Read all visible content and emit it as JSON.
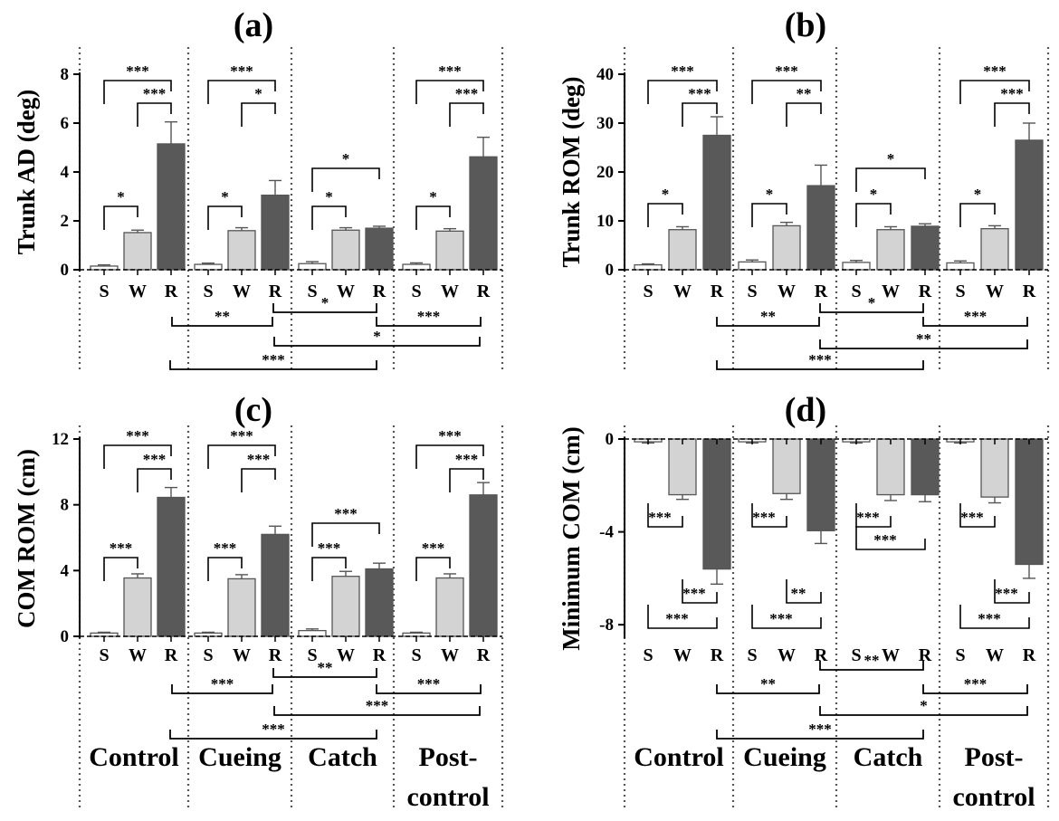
{
  "chart_data": [
    {
      "type": "bar",
      "panel": "(a)",
      "title": "(a)",
      "ylabel": "Trunk AD (deg)",
      "ylim": [
        0,
        8
      ],
      "yticks": [
        "0",
        "2",
        "4",
        "6",
        "8"
      ],
      "groups": [
        "Control",
        "Cueing",
        "Catch",
        "Post-control"
      ],
      "conditions": [
        "S",
        "W",
        "R"
      ],
      "series": [
        {
          "name": "S",
          "color": "#ffffff",
          "values": [
            0.15,
            0.22,
            0.25,
            0.22
          ],
          "errors": [
            0.05,
            0.05,
            0.08,
            0.06
          ]
        },
        {
          "name": "W",
          "color": "#d3d3d3",
          "values": [
            1.52,
            1.6,
            1.62,
            1.58
          ],
          "errors": [
            0.1,
            0.12,
            0.1,
            0.1
          ]
        },
        {
          "name": "R",
          "color": "#595959",
          "values": [
            5.15,
            3.05,
            1.7,
            4.62
          ],
          "errors": [
            0.9,
            0.6,
            0.08,
            0.8
          ]
        }
      ],
      "within_sig": [
        {
          "pairs": [
            [
              "S",
              "W",
              "*"
            ],
            [
              "W",
              "R",
              "***"
            ],
            [
              "S",
              "R",
              "***"
            ]
          ]
        },
        {
          "pairs": [
            [
              "S",
              "W",
              "*"
            ],
            [
              "W",
              "R",
              "*"
            ],
            [
              "S",
              "R",
              "***"
            ]
          ]
        },
        {
          "pairs": [
            [
              "S",
              "W",
              "*"
            ],
            [
              "W",
              "R",
              ""
            ],
            [
              "S",
              "R",
              "*"
            ]
          ]
        },
        {
          "pairs": [
            [
              "S",
              "W",
              "*"
            ],
            [
              "W",
              "R",
              "***"
            ],
            [
              "S",
              "R",
              "***"
            ]
          ]
        }
      ],
      "between_sig": [
        {
          "from": "Control",
          "to": "Cueing",
          "label": "**"
        },
        {
          "from": "Cueing",
          "to": "Catch",
          "label": "*"
        },
        {
          "from": "Catch",
          "to": "Post-control",
          "label": "***"
        },
        {
          "from": "Cueing",
          "to": "Post-control",
          "label": "*"
        },
        {
          "from": "Control",
          "to": "Catch",
          "label": "***"
        }
      ]
    },
    {
      "type": "bar",
      "panel": "(b)",
      "title": "(b)",
      "ylabel": "Trunk ROM (deg)",
      "ylim": [
        0,
        40
      ],
      "yticks": [
        "0",
        "10",
        "20",
        "30",
        "40"
      ],
      "groups": [
        "Control",
        "Cueing",
        "Catch",
        "Post-control"
      ],
      "conditions": [
        "S",
        "W",
        "R"
      ],
      "series": [
        {
          "name": "S",
          "color": "#ffffff",
          "values": [
            1.0,
            1.6,
            1.5,
            1.4
          ],
          "errors": [
            0.2,
            0.4,
            0.4,
            0.4
          ]
        },
        {
          "name": "W",
          "color": "#d3d3d3",
          "values": [
            8.2,
            9.0,
            8.2,
            8.4
          ],
          "errors": [
            0.6,
            0.7,
            0.6,
            0.6
          ]
        },
        {
          "name": "R",
          "color": "#595959",
          "values": [
            27.5,
            17.2,
            8.9,
            26.5
          ],
          "errors": [
            3.8,
            4.2,
            0.5,
            3.5
          ]
        }
      ],
      "within_sig": [
        {
          "pairs": [
            [
              "S",
              "W",
              "*"
            ],
            [
              "W",
              "R",
              "***"
            ],
            [
              "S",
              "R",
              "***"
            ]
          ]
        },
        {
          "pairs": [
            [
              "S",
              "W",
              "*"
            ],
            [
              "W",
              "R",
              "**"
            ],
            [
              "S",
              "R",
              "***"
            ]
          ]
        },
        {
          "pairs": [
            [
              "S",
              "W",
              "*"
            ],
            [
              "W",
              "R",
              ""
            ],
            [
              "S",
              "R",
              "*"
            ]
          ]
        },
        {
          "pairs": [
            [
              "S",
              "W",
              "*"
            ],
            [
              "W",
              "R",
              "***"
            ],
            [
              "S",
              "R",
              "***"
            ]
          ]
        }
      ],
      "between_sig": [
        {
          "from": "Control",
          "to": "Cueing",
          "label": "**"
        },
        {
          "from": "Cueing",
          "to": "Catch",
          "label": "*"
        },
        {
          "from": "Catch",
          "to": "Post-control",
          "label": "***"
        },
        {
          "from": "Cueing",
          "to": "Post-control",
          "label": "**"
        },
        {
          "from": "Control",
          "to": "Catch",
          "label": "***"
        }
      ]
    },
    {
      "type": "bar",
      "panel": "(c)",
      "title": "(c)",
      "ylabel": "COM ROM (cm)",
      "ylim": [
        0,
        12
      ],
      "yticks": [
        "0",
        "4",
        "8",
        "12"
      ],
      "groups": [
        "Control",
        "Cueing",
        "Catch",
        "Post-control"
      ],
      "group_labels": [
        "Control",
        "Cueing",
        "Catch",
        "Post-",
        "control"
      ],
      "conditions": [
        "S",
        "W",
        "R"
      ],
      "series": [
        {
          "name": "S",
          "color": "#ffffff",
          "values": [
            0.2,
            0.2,
            0.35,
            0.2
          ],
          "errors": [
            0.05,
            0.05,
            0.1,
            0.05
          ]
        },
        {
          "name": "W",
          "color": "#d3d3d3",
          "values": [
            3.55,
            3.5,
            3.65,
            3.55
          ],
          "errors": [
            0.25,
            0.25,
            0.3,
            0.25
          ]
        },
        {
          "name": "R",
          "color": "#595959",
          "values": [
            8.45,
            6.2,
            4.1,
            8.6
          ],
          "errors": [
            0.6,
            0.5,
            0.35,
            0.75
          ]
        }
      ],
      "within_sig": [
        {
          "pairs": [
            [
              "S",
              "W",
              "***"
            ],
            [
              "W",
              "R",
              "***"
            ],
            [
              "S",
              "R",
              "***"
            ]
          ]
        },
        {
          "pairs": [
            [
              "S",
              "W",
              "***"
            ],
            [
              "W",
              "R",
              "***"
            ],
            [
              "S",
              "R",
              "***"
            ]
          ]
        },
        {
          "pairs": [
            [
              "S",
              "W",
              "***"
            ],
            [
              "W",
              "R",
              ""
            ],
            [
              "S",
              "R",
              "***"
            ]
          ]
        },
        {
          "pairs": [
            [
              "S",
              "W",
              "***"
            ],
            [
              "W",
              "R",
              "***"
            ],
            [
              "S",
              "R",
              "***"
            ]
          ]
        }
      ],
      "between_sig": [
        {
          "from": "Control",
          "to": "Cueing",
          "label": "***"
        },
        {
          "from": "Cueing",
          "to": "Catch",
          "label": "**"
        },
        {
          "from": "Catch",
          "to": "Post-control",
          "label": "***"
        },
        {
          "from": "Cueing",
          "to": "Post-control",
          "label": "***"
        },
        {
          "from": "Control",
          "to": "Catch",
          "label": "***"
        }
      ]
    },
    {
      "type": "bar",
      "panel": "(d)",
      "title": "(d)",
      "ylabel": "Minimum COM (cm)",
      "ylim": [
        -8.5,
        0
      ],
      "yticks": [
        "0",
        "-4",
        "-8"
      ],
      "groups": [
        "Control",
        "Cueing",
        "Catch",
        "Post-control"
      ],
      "group_labels": [
        "Control",
        "Cueing",
        "Catch",
        "Post-",
        "control"
      ],
      "conditions": [
        "S",
        "W",
        "R"
      ],
      "series": [
        {
          "name": "S",
          "color": "#ffffff",
          "values": [
            -0.12,
            -0.12,
            -0.12,
            -0.12
          ],
          "errors": [
            0.05,
            0.05,
            0.05,
            0.05
          ]
        },
        {
          "name": "W",
          "color": "#d3d3d3",
          "values": [
            -2.4,
            -2.35,
            -2.4,
            -2.5
          ],
          "errors": [
            0.2,
            0.25,
            0.25,
            0.25
          ]
        },
        {
          "name": "R",
          "color": "#595959",
          "values": [
            -5.6,
            -3.95,
            -2.4,
            -5.4
          ],
          "errors": [
            0.65,
            0.55,
            0.3,
            0.6
          ]
        }
      ],
      "within_sig": [
        {
          "pairs": [
            [
              "S",
              "W",
              "***"
            ],
            [
              "W",
              "R",
              "***"
            ],
            [
              "S",
              "R",
              "***"
            ]
          ]
        },
        {
          "pairs": [
            [
              "S",
              "W",
              "***"
            ],
            [
              "W",
              "R",
              "**"
            ],
            [
              "S",
              "R",
              "***"
            ]
          ]
        },
        {
          "pairs": [
            [
              "S",
              "W",
              "***"
            ],
            [
              "W",
              "R",
              ""
            ],
            [
              "S",
              "R",
              "***"
            ]
          ]
        },
        {
          "pairs": [
            [
              "S",
              "W",
              "***"
            ],
            [
              "W",
              "R",
              "***"
            ],
            [
              "S",
              "R",
              "***"
            ]
          ]
        }
      ],
      "between_sig": [
        {
          "from": "Control",
          "to": "Cueing",
          "label": "**"
        },
        {
          "from": "Cueing",
          "to": "Catch",
          "label": "**"
        },
        {
          "from": "Catch",
          "to": "Post-control",
          "label": "***"
        },
        {
          "from": "Cueing",
          "to": "Post-control",
          "label": "*"
        },
        {
          "from": "Control",
          "to": "Catch",
          "label": "***"
        }
      ]
    }
  ]
}
